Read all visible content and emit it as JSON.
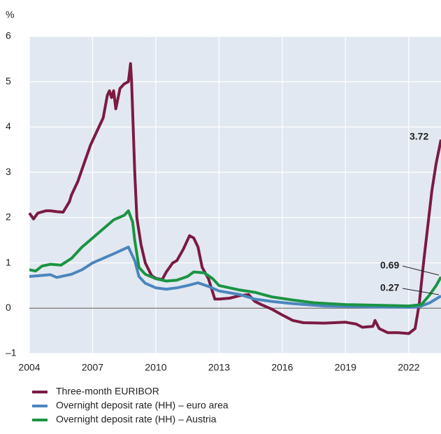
{
  "chart_data": {
    "type": "line",
    "y_unit": "%",
    "xlim": [
      2004,
      2023.53
    ],
    "xticks": [
      2004,
      2007,
      2010,
      2013,
      2016,
      2019,
      2022
    ],
    "ylim": [
      -1,
      6
    ],
    "yticks": [
      {
        "value": -1,
        "label": "–1"
      },
      0,
      1,
      2,
      3,
      4,
      5,
      6
    ],
    "grid": true,
    "series": [
      {
        "name": "Three-month EURIBOR",
        "color": "#7b1a42",
        "x": [
          2004.0,
          2004.2,
          2004.4,
          2004.8,
          2005.0,
          2005.3,
          2005.6,
          2005.9,
          2006.0,
          2006.3,
          2006.6,
          2006.9,
          2007.2,
          2007.5,
          2007.7,
          2007.8,
          2007.9,
          2008.0,
          2008.1,
          2008.3,
          2008.5,
          2008.7,
          2008.8,
          2008.85,
          2009.0,
          2009.1,
          2009.3,
          2009.5,
          2009.8,
          2010.0,
          2010.3,
          2010.5,
          2010.8,
          2011.0,
          2011.3,
          2011.5,
          2011.6,
          2011.8,
          2012.0,
          2012.2,
          2012.5,
          2012.8,
          2013.0,
          2013.5,
          2014.0,
          2014.4,
          2014.7,
          2015.0,
          2015.5,
          2016.0,
          2016.5,
          2017.0,
          2018.0,
          2019.0,
          2019.5,
          2019.8,
          2020.3,
          2020.4,
          2020.6,
          2021.0,
          2021.5,
          2022.0,
          2022.3,
          2022.5,
          2022.7,
          2022.9,
          2023.1,
          2023.3,
          2023.53
        ],
        "values": [
          2.1,
          1.97,
          2.1,
          2.15,
          2.15,
          2.13,
          2.12,
          2.35,
          2.5,
          2.8,
          3.2,
          3.6,
          3.9,
          4.2,
          4.7,
          4.8,
          4.65,
          4.8,
          4.4,
          4.85,
          4.95,
          5.0,
          5.4,
          5.0,
          3.0,
          2.0,
          1.4,
          1.0,
          0.72,
          0.66,
          0.63,
          0.8,
          1.0,
          1.05,
          1.3,
          1.5,
          1.6,
          1.55,
          1.35,
          0.9,
          0.65,
          0.2,
          0.2,
          0.22,
          0.28,
          0.3,
          0.15,
          0.08,
          -0.02,
          -0.15,
          -0.27,
          -0.32,
          -0.33,
          -0.31,
          -0.35,
          -0.42,
          -0.4,
          -0.27,
          -0.45,
          -0.54,
          -0.54,
          -0.56,
          -0.45,
          0.1,
          1.0,
          1.8,
          2.6,
          3.2,
          3.72
        ]
      },
      {
        "name": "Overnight deposit rate (HH) – euro area",
        "color": "#4a86bd",
        "x": [
          2004.0,
          2005.0,
          2005.3,
          2006.0,
          2006.5,
          2007.0,
          2007.5,
          2008.0,
          2008.7,
          2009.0,
          2009.2,
          2009.5,
          2010.0,
          2010.5,
          2011.0,
          2011.5,
          2012.0,
          2012.5,
          2013.0,
          2014.0,
          2014.7,
          2015.5,
          2016.5,
          2018.0,
          2020.0,
          2022.0,
          2022.5,
          2023.0,
          2023.53
        ],
        "values": [
          0.7,
          0.74,
          0.68,
          0.75,
          0.85,
          1.0,
          1.1,
          1.2,
          1.35,
          1.05,
          0.7,
          0.55,
          0.45,
          0.42,
          0.45,
          0.5,
          0.56,
          0.48,
          0.38,
          0.3,
          0.2,
          0.15,
          0.1,
          0.05,
          0.03,
          0.02,
          0.03,
          0.12,
          0.27
        ]
      },
      {
        "name": "Overnight deposit rate (HH) – Austria",
        "color": "#1a9443",
        "x": [
          2004.0,
          2004.3,
          2004.6,
          2005.0,
          2005.5,
          2006.0,
          2006.5,
          2007.0,
          2007.5,
          2008.0,
          2008.5,
          2008.7,
          2008.9,
          2009.0,
          2009.2,
          2009.5,
          2010.0,
          2010.5,
          2011.0,
          2011.5,
          2011.8,
          2012.3,
          2012.7,
          2013.0,
          2014.0,
          2014.7,
          2015.5,
          2016.5,
          2017.5,
          2019.0,
          2021.0,
          2022.0,
          2022.6,
          2023.0,
          2023.3,
          2023.53
        ],
        "values": [
          0.85,
          0.82,
          0.93,
          0.97,
          0.95,
          1.1,
          1.35,
          1.55,
          1.75,
          1.95,
          2.05,
          2.15,
          1.9,
          1.5,
          0.9,
          0.75,
          0.65,
          0.6,
          0.62,
          0.7,
          0.8,
          0.78,
          0.65,
          0.5,
          0.4,
          0.35,
          0.25,
          0.18,
          0.12,
          0.08,
          0.06,
          0.05,
          0.08,
          0.3,
          0.5,
          0.69
        ]
      }
    ],
    "annotations": [
      "3.72",
      "0.69",
      "0.27"
    ]
  }
}
